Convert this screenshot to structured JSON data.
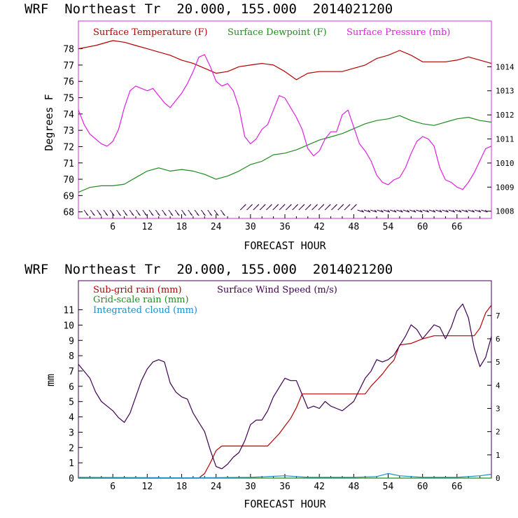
{
  "charts": [
    {
      "title": "WRF  Northeast Tr  20.000, 155.000  2014021200",
      "xlabel": "FORECAST HOUR",
      "ylabel_left": "Degrees F",
      "xticks": [
        "6",
        "12",
        "18",
        "24",
        "30",
        "36",
        "42",
        "48",
        "54",
        "60",
        "66"
      ],
      "yticks_left": [
        "68",
        "69",
        "70",
        "71",
        "72",
        "73",
        "74",
        "75",
        "76",
        "77",
        "78"
      ],
      "yticks_right": [
        "1008",
        "1009",
        "1010",
        "1011",
        "1012",
        "1013",
        "1014"
      ],
      "legend": [
        {
          "label": "Surface Temperature (F)",
          "color": "#b30000"
        },
        {
          "label": "Surface Dewpoint (F)",
          "color": "#1e8c1e"
        },
        {
          "label": "Surface Pressure (mb)",
          "color": "#e01ee0"
        }
      ]
    },
    {
      "title": "WRF  Northeast Tr  20.000, 155.000  2014021200",
      "xlabel": "FORECAST HOUR",
      "ylabel_left": "mm",
      "xticks": [
        "6",
        "12",
        "18",
        "24",
        "30",
        "36",
        "42",
        "48",
        "54",
        "60",
        "66"
      ],
      "yticks_left": [
        "0",
        "1",
        "2",
        "3",
        "4",
        "5",
        "6",
        "7",
        "8",
        "9",
        "10",
        "11"
      ],
      "yticks_right": [
        "0",
        "1",
        "2",
        "3",
        "4",
        "5",
        "6",
        "7"
      ],
      "legend": [
        {
          "label": "Sub-grid rain (mm)",
          "color": "#b30000"
        },
        {
          "label": "Grid-scale rain (mm)",
          "color": "#1e8c1e"
        },
        {
          "label": "Integrated cloud (mm)",
          "color": "#1e8cc8"
        },
        {
          "label": "Surface Wind Speed (m/s)",
          "color": "#3c0050"
        }
      ]
    }
  ],
  "chart_data": [
    {
      "type": "line",
      "title": "WRF  Northeast Tr  20.000, 155.000  2014021200",
      "xlabel": "FORECAST HOUR",
      "ylabel": "Degrees F",
      "xlim": [
        0,
        72
      ],
      "ylim": [
        67.6,
        79.7
      ],
      "y2lim": [
        1007.7,
        1015.9
      ],
      "y2label": "",
      "series": [
        {
          "name": "Surface Temperature (F)",
          "axis": "left",
          "color": "#b30000",
          "x": [
            0,
            3,
            6,
            8,
            10,
            12,
            14,
            16,
            18,
            20,
            22,
            24,
            26,
            28,
            30,
            32,
            34,
            36,
            38,
            40,
            42,
            44,
            46,
            48,
            50,
            52,
            54,
            56,
            58,
            60,
            62,
            64,
            66,
            68,
            70,
            72
          ],
          "y": [
            78.0,
            78.2,
            78.5,
            78.4,
            78.2,
            78.0,
            77.8,
            77.6,
            77.3,
            77.1,
            76.8,
            76.5,
            76.6,
            76.9,
            77.0,
            77.1,
            77.0,
            76.6,
            76.1,
            76.5,
            76.6,
            76.6,
            76.6,
            76.8,
            77.0,
            77.4,
            77.6,
            77.9,
            77.6,
            77.2,
            77.2,
            77.2,
            77.3,
            77.5,
            77.3,
            77.1
          ]
        },
        {
          "name": "Surface Dewpoint (F)",
          "axis": "left",
          "color": "#1e8c1e",
          "x": [
            0,
            2,
            4,
            6,
            8,
            10,
            12,
            14,
            16,
            18,
            20,
            22,
            24,
            26,
            28,
            30,
            32,
            34,
            36,
            38,
            40,
            42,
            44,
            46,
            48,
            50,
            52,
            54,
            56,
            58,
            60,
            62,
            64,
            66,
            68,
            70,
            72
          ],
          "y": [
            69.2,
            69.5,
            69.6,
            69.6,
            69.7,
            70.1,
            70.5,
            70.7,
            70.5,
            70.6,
            70.5,
            70.3,
            70.0,
            70.2,
            70.5,
            70.9,
            71.1,
            71.5,
            71.6,
            71.8,
            72.1,
            72.4,
            72.6,
            72.8,
            73.1,
            73.4,
            73.6,
            73.7,
            73.9,
            73.6,
            73.4,
            73.3,
            73.5,
            73.7,
            73.8,
            73.6,
            73.5
          ]
        },
        {
          "name": "Surface Pressure (mb)",
          "axis": "right",
          "color": "#e01ee0",
          "x": [
            0,
            1,
            2,
            3,
            4,
            5,
            6,
            7,
            8,
            9,
            10,
            11,
            12,
            13,
            14,
            15,
            16,
            17,
            18,
            19,
            20,
            21,
            22,
            23,
            24,
            25,
            26,
            27,
            28,
            29,
            30,
            31,
            32,
            33,
            34,
            35,
            36,
            37,
            38,
            39,
            40,
            41,
            42,
            43,
            44,
            45,
            46,
            47,
            48,
            49,
            50,
            51,
            52,
            53,
            54,
            55,
            56,
            57,
            58,
            59,
            60,
            61,
            62,
            63,
            64,
            65,
            66,
            67,
            68,
            69,
            70,
            71,
            72
          ],
          "y": [
            1012.2,
            1011.6,
            1011.2,
            1011.0,
            1010.8,
            1010.7,
            1010.9,
            1011.4,
            1012.3,
            1013.0,
            1013.2,
            1013.1,
            1013.0,
            1013.1,
            1012.8,
            1012.5,
            1012.3,
            1012.6,
            1012.9,
            1013.3,
            1013.8,
            1014.4,
            1014.5,
            1014.0,
            1013.4,
            1013.2,
            1013.3,
            1013.0,
            1012.3,
            1011.1,
            1010.8,
            1011.0,
            1011.4,
            1011.6,
            1012.2,
            1012.8,
            1012.7,
            1012.3,
            1011.9,
            1011.4,
            1010.6,
            1010.3,
            1010.5,
            1011.0,
            1011.3,
            1011.3,
            1012.0,
            1012.2,
            1011.5,
            1010.8,
            1010.5,
            1010.1,
            1009.5,
            1009.2,
            1009.1,
            1009.3,
            1009.4,
            1009.8,
            1010.4,
            1010.9,
            1011.1,
            1011.0,
            1010.7,
            1009.8,
            1009.3,
            1009.2,
            1009.0,
            1008.9,
            1009.2,
            1009.6,
            1010.1,
            1010.6,
            1010.7
          ]
        }
      ]
    },
    {
      "type": "line",
      "title": "WRF  Northeast Tr  20.000, 155.000  2014021200",
      "xlabel": "FORECAST HOUR",
      "ylabel": "mm",
      "xlim": [
        0,
        72
      ],
      "ylim": [
        0,
        12.9
      ],
      "y2lim": [
        0,
        8.5
      ],
      "y2label": "",
      "series": [
        {
          "name": "Sub-grid rain (mm)",
          "axis": "left",
          "color": "#b30000",
          "x": [
            0,
            21,
            22,
            23,
            24,
            25,
            33,
            35,
            37,
            38,
            39,
            50,
            51,
            52,
            53,
            54,
            55,
            56,
            58,
            60,
            62,
            69,
            70,
            71,
            72
          ],
          "y": [
            0,
            0,
            0.3,
            1.0,
            1.8,
            2.1,
            2.1,
            2.9,
            3.9,
            4.6,
            5.5,
            5.5,
            6.0,
            6.4,
            6.8,
            7.3,
            7.7,
            8.7,
            8.8,
            9.1,
            9.3,
            9.3,
            9.8,
            10.8,
            11.3
          ]
        },
        {
          "name": "Grid-scale rain (mm)",
          "axis": "left",
          "color": "#1e8c1e",
          "x": [
            0,
            72
          ],
          "y": [
            0,
            0
          ]
        },
        {
          "name": "Integrated cloud (mm)",
          "axis": "left",
          "color": "#1e8cc8",
          "x": [
            0,
            20,
            30,
            36,
            40,
            48,
            52,
            54,
            56,
            60,
            66,
            70,
            72
          ],
          "y": [
            0.05,
            0.02,
            0.05,
            0.15,
            0.05,
            0.05,
            0.1,
            0.3,
            0.15,
            0.05,
            0.05,
            0.15,
            0.25
          ]
        },
        {
          "name": "Surface Wind Speed (m/s)",
          "axis": "right",
          "color": "#3c0050",
          "x": [
            0,
            1,
            2,
            3,
            4,
            5,
            6,
            7,
            8,
            9,
            10,
            11,
            12,
            13,
            14,
            15,
            16,
            17,
            18,
            19,
            20,
            21,
            22,
            23,
            24,
            25,
            26,
            27,
            28,
            29,
            30,
            31,
            32,
            33,
            34,
            35,
            36,
            37,
            38,
            39,
            40,
            41,
            42,
            43,
            44,
            45,
            46,
            47,
            48,
            49,
            50,
            51,
            52,
            53,
            54,
            55,
            56,
            57,
            58,
            59,
            60,
            61,
            62,
            63,
            64,
            65,
            66,
            67,
            68,
            69,
            70,
            71,
            72
          ],
          "y": [
            4.9,
            4.6,
            4.3,
            3.7,
            3.3,
            3.1,
            2.9,
            2.6,
            2.4,
            2.8,
            3.5,
            4.2,
            4.7,
            5.0,
            5.1,
            5.0,
            4.1,
            3.7,
            3.5,
            3.4,
            2.8,
            2.4,
            2.0,
            1.2,
            0.5,
            0.4,
            0.6,
            0.9,
            1.1,
            1.6,
            2.3,
            2.5,
            2.5,
            2.9,
            3.5,
            3.9,
            4.3,
            4.2,
            4.2,
            3.6,
            3.0,
            3.1,
            3.0,
            3.3,
            3.1,
            3.0,
            2.9,
            3.1,
            3.3,
            3.8,
            4.3,
            4.6,
            5.1,
            5.0,
            5.1,
            5.3,
            5.7,
            6.1,
            6.6,
            6.4,
            6.0,
            6.3,
            6.6,
            6.5,
            6.0,
            6.5,
            7.2,
            7.5,
            6.9,
            5.6,
            4.8,
            5.2,
            6.1
          ]
        }
      ]
    }
  ]
}
